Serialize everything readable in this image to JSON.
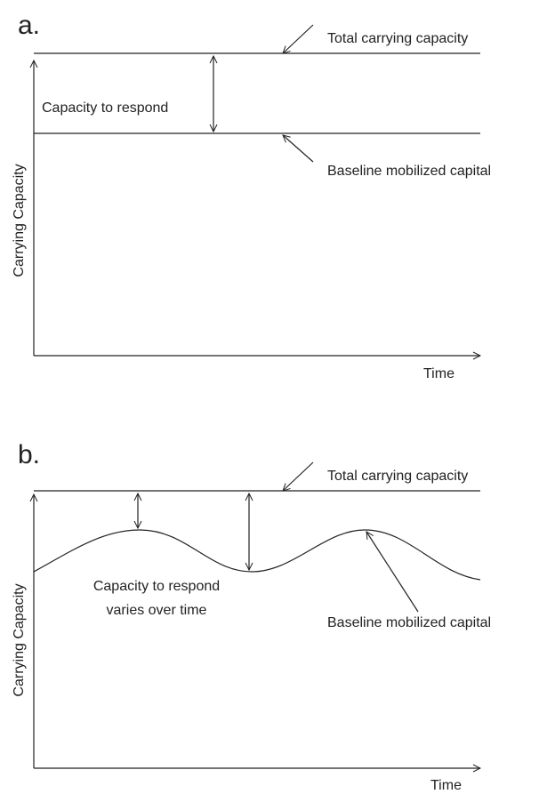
{
  "panels": [
    {
      "label": "a.",
      "y_axis": "Carrying Capacity",
      "x_axis": "Time",
      "top_line": "Total carrying capacity",
      "baseline": "Baseline mobilized capital",
      "annotation": [
        "Capacity to respond"
      ]
    },
    {
      "label": "b.",
      "y_axis": "Carrying Capacity",
      "x_axis": "Time",
      "top_line": "Total carrying capacity",
      "baseline": "Baseline mobilized capital",
      "annotation": [
        "Capacity to respond",
        "varies over time"
      ]
    }
  ]
}
